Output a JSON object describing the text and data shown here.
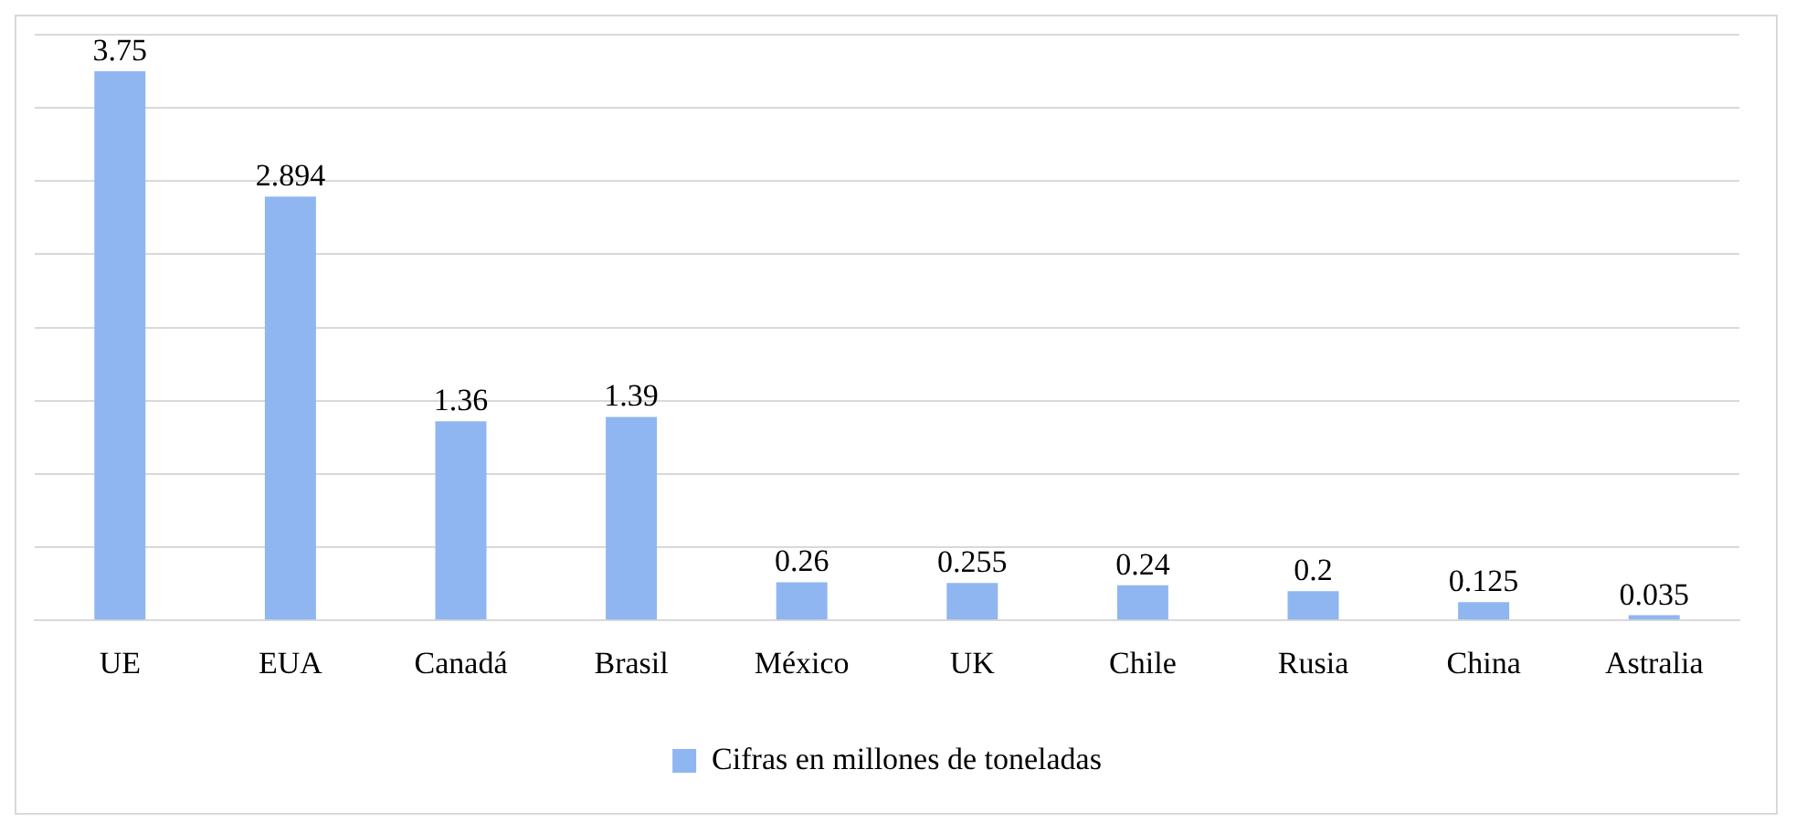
{
  "chart_data": {
    "type": "bar",
    "categories": [
      "UE",
      "EUA",
      "Canadá",
      "Brasil",
      "México",
      "UK",
      "Chile",
      "Rusia",
      "China",
      "Astralia"
    ],
    "series": [
      {
        "name": "Cifras en millones de toneladas",
        "color": "#8fb6f0",
        "values": [
          3.75,
          2.894,
          1.36,
          1.39,
          0.26,
          0.255,
          0.24,
          0.2,
          0.125,
          0.035
        ]
      }
    ],
    "tick_labels": "x",
    "grid": "y",
    "legend": "bottom",
    "data_labels": true
  }
}
